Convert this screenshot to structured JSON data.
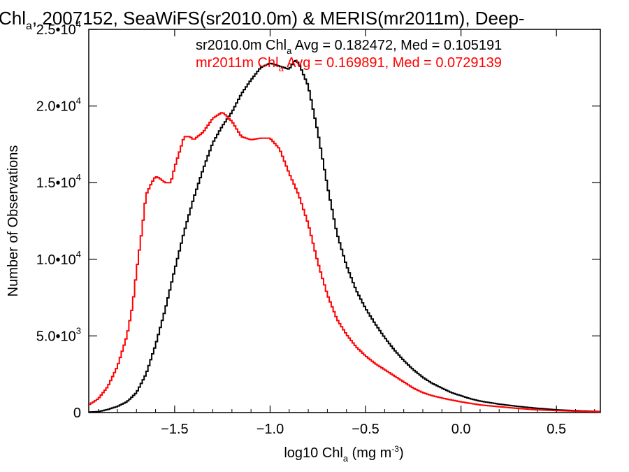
{
  "chart_data": {
    "type": "line",
    "title_parts": [
      "Chl",
      "a",
      ", 2007152, SeaWiFS(sr2010.0m) & MERIS(mr2011m), Deep-"
    ],
    "xlabel_parts": [
      "log10 Chl",
      "a",
      " (mg m",
      "-3",
      ")"
    ],
    "ylabel": "Number of Observations",
    "xlim": [
      -1.95,
      0.73
    ],
    "ylim": [
      0,
      25000
    ],
    "x_ticks": [
      {
        "value": -1.5,
        "label": "−1.5"
      },
      {
        "value": -1.0,
        "label": "−1.0"
      },
      {
        "value": -0.5,
        "label": "−0.5"
      },
      {
        "value": 0.0,
        "label": "0.0"
      },
      {
        "value": 0.5,
        "label": "0.5"
      }
    ],
    "y_ticks": [
      {
        "value": 0,
        "mant": "0",
        "exp": ""
      },
      {
        "value": 5000,
        "mant": "5.0•10",
        "exp": "3"
      },
      {
        "value": 10000,
        "mant": "1.0•10",
        "exp": "4"
      },
      {
        "value": 15000,
        "mant": "1.5•10",
        "exp": "4"
      },
      {
        "value": 20000,
        "mant": "2.0•10",
        "exp": "4"
      },
      {
        "value": 25000,
        "mant": "2.5•10",
        "exp": "4"
      }
    ],
    "grid": false,
    "legend_placement": "top-right",
    "series": [
      {
        "name": "sr2010.0m",
        "legend_parts": [
          "sr2010.0m Chl",
          "a",
          " Avg = 0.182472, Med = 0.105191"
        ],
        "color": "#000000",
        "x": [
          -1.95,
          -1.9,
          -1.85,
          -1.8,
          -1.75,
          -1.7,
          -1.65,
          -1.6,
          -1.55,
          -1.5,
          -1.45,
          -1.4,
          -1.35,
          -1.3,
          -1.25,
          -1.2,
          -1.15,
          -1.1,
          -1.05,
          -1.0,
          -0.95,
          -0.9,
          -0.87,
          -0.85,
          -0.8,
          -0.75,
          -0.7,
          -0.65,
          -0.6,
          -0.55,
          -0.5,
          -0.45,
          -0.4,
          -0.35,
          -0.3,
          -0.25,
          -0.2,
          -0.15,
          -0.1,
          -0.05,
          0.0,
          0.05,
          0.1,
          0.2,
          0.3,
          0.4,
          0.5,
          0.6,
          0.73
        ],
        "values": [
          30,
          60,
          200,
          400,
          700,
          1300,
          2500,
          4400,
          6700,
          9300,
          11800,
          14000,
          15900,
          17600,
          18700,
          19600,
          20800,
          21700,
          22500,
          22800,
          22600,
          22400,
          23000,
          22800,
          21300,
          18300,
          14800,
          11700,
          9600,
          8000,
          6800,
          5800,
          4900,
          4100,
          3400,
          2800,
          2300,
          1900,
          1600,
          1300,
          1100,
          900,
          750,
          550,
          400,
          280,
          180,
          120,
          60
        ]
      },
      {
        "name": "mr2011m",
        "legend_parts": [
          "mr2011m Chl",
          "a",
          " Avg = 0.169891, Med = 0.0729139"
        ],
        "color": "#ff0000",
        "x": [
          -1.95,
          -1.9,
          -1.85,
          -1.8,
          -1.75,
          -1.72,
          -1.7,
          -1.67,
          -1.65,
          -1.62,
          -1.6,
          -1.58,
          -1.55,
          -1.52,
          -1.5,
          -1.47,
          -1.45,
          -1.42,
          -1.4,
          -1.35,
          -1.3,
          -1.25,
          -1.2,
          -1.15,
          -1.1,
          -1.05,
          -1.0,
          -0.95,
          -0.9,
          -0.85,
          -0.8,
          -0.75,
          -0.7,
          -0.65,
          -0.6,
          -0.55,
          -0.5,
          -0.45,
          -0.4,
          -0.35,
          -0.3,
          -0.25,
          -0.2,
          -0.15,
          -0.1,
          -0.05,
          0.0,
          0.05,
          0.1,
          0.2,
          0.3,
          0.4,
          0.5,
          0.6,
          0.73
        ],
        "values": [
          500,
          900,
          1700,
          3000,
          5000,
          7000,
          9200,
          12000,
          14200,
          15000,
          15400,
          15300,
          15000,
          15000,
          16000,
          17200,
          18000,
          18000,
          17800,
          18300,
          19200,
          19600,
          19000,
          18000,
          17800,
          17900,
          17900,
          17200,
          15600,
          14200,
          12300,
          9800,
          7700,
          6100,
          5100,
          4300,
          3700,
          3200,
          2800,
          2400,
          2000,
          1600,
          1300,
          1100,
          950,
          820,
          700,
          600,
          500,
          380,
          270,
          180,
          130,
          90,
          40
        ]
      }
    ]
  }
}
